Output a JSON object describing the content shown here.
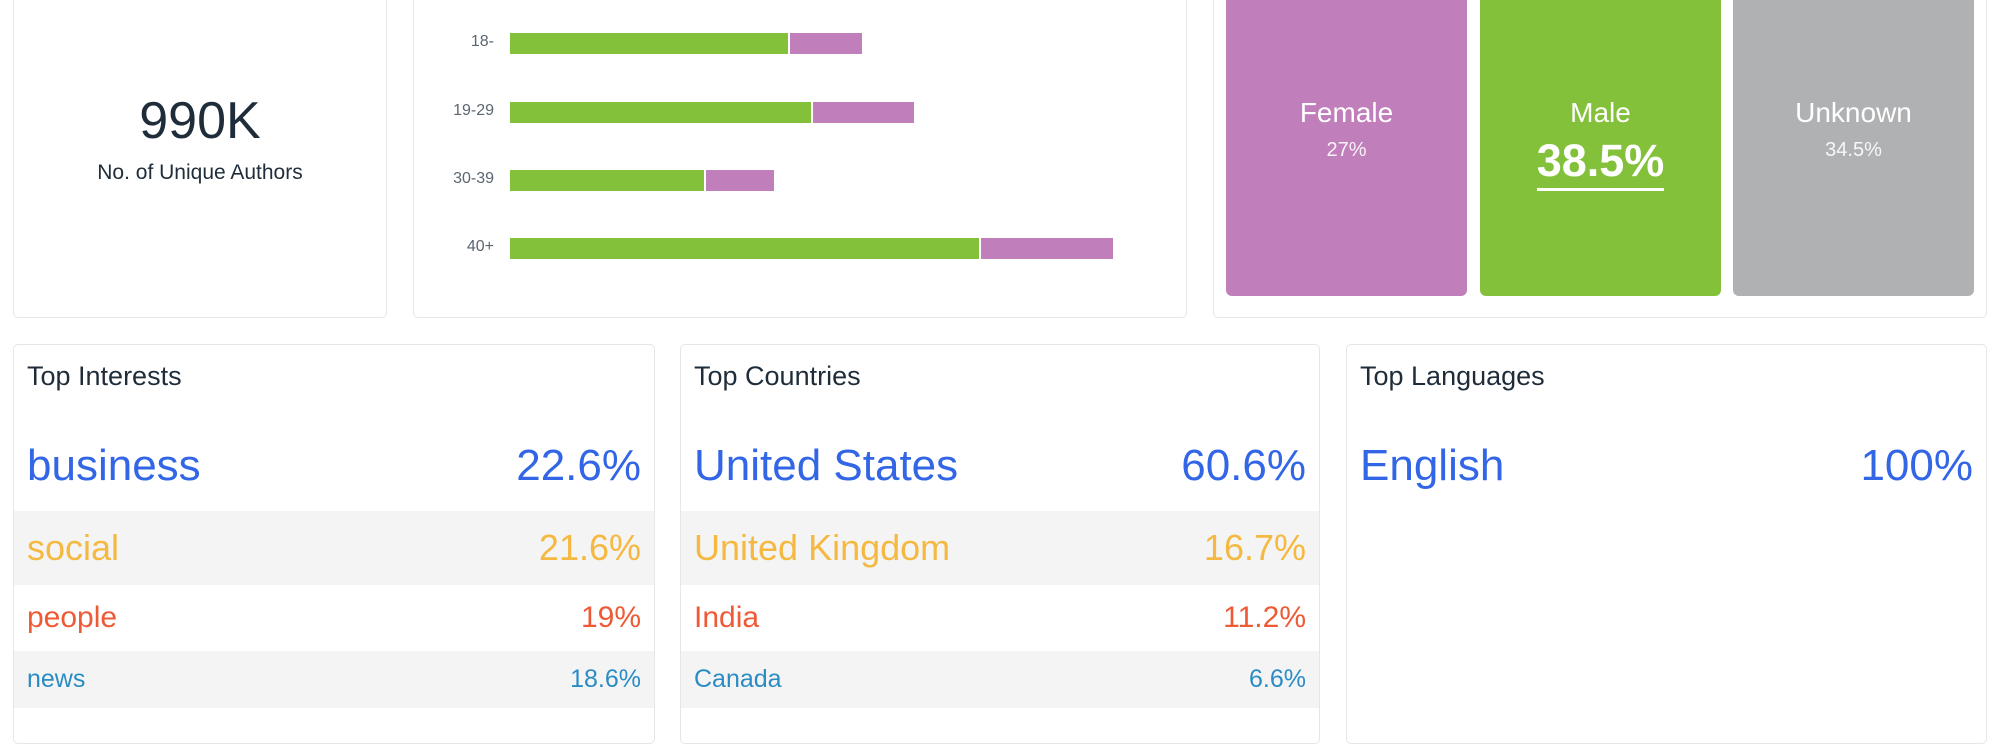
{
  "authors": {
    "value": "990K",
    "label": "No. of Unique Authors"
  },
  "chart_data": {
    "type": "bar",
    "orientation": "horizontal",
    "stacked": true,
    "categories": [
      "18-",
      "19-29",
      "30-39",
      "40+"
    ],
    "series": [
      {
        "values": [
          17.2,
          18.6,
          12.0,
          28.9
        ],
        "color": "#84c13b"
      },
      {
        "values": [
          4.5,
          6.3,
          4.3,
          8.2
        ],
        "color": "#c07ebb"
      }
    ]
  },
  "gender": [
    {
      "label": "Female",
      "pct": "27%",
      "color": "#c07ebb"
    },
    {
      "label": "Male",
      "pct": "38.5%",
      "color": "#84c13b",
      "highlight": true
    },
    {
      "label": "Unknown",
      "pct": "34.5%",
      "color": "#b0b1b3"
    }
  ],
  "interests": {
    "title": "Top Interests",
    "rows": [
      {
        "name": "business",
        "pct": "22.6%"
      },
      {
        "name": "social",
        "pct": "21.6%"
      },
      {
        "name": "people",
        "pct": "19%"
      },
      {
        "name": "news",
        "pct": "18.6%"
      }
    ]
  },
  "countries": {
    "title": "Top Countries",
    "rows": [
      {
        "name": "United States",
        "pct": "60.6%"
      },
      {
        "name": "United Kingdom",
        "pct": "16.7%"
      },
      {
        "name": "India",
        "pct": "11.2%"
      },
      {
        "name": "Canada",
        "pct": "6.6%"
      }
    ]
  },
  "languages": {
    "title": "Top Languages",
    "rows": [
      {
        "name": "English",
        "pct": "100%"
      }
    ]
  },
  "rank_colors": [
    "#3366e6",
    "#f5b942",
    "#ef5a36",
    "#2a8cc4"
  ]
}
